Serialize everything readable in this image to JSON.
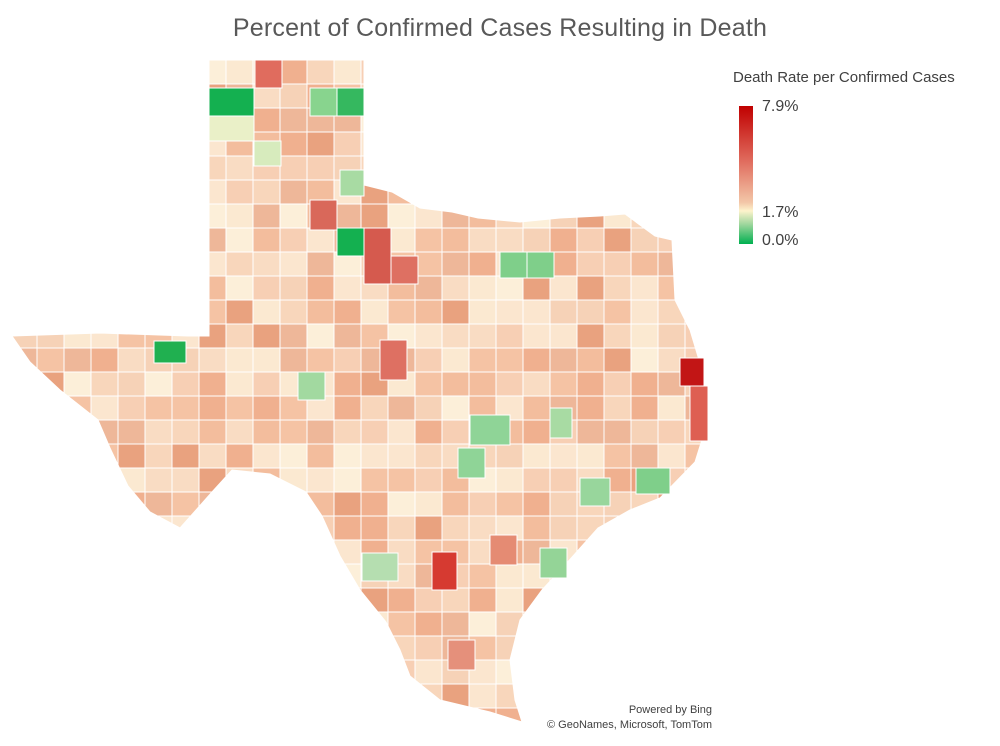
{
  "title": "Percent of Confirmed Cases Resulting in Death",
  "legend": {
    "title": "Death Rate per Confirmed Cases",
    "max_label": "7.9%",
    "mid_label": "1.7%",
    "min_label": "0.0%",
    "colors": {
      "max": "#c00000",
      "mid": "#fdf3cc",
      "min": "#00b050"
    }
  },
  "credits": {
    "powered_by": "Powered by Bing",
    "copyright": "© GeoNames, Microsoft, TomTom"
  }
}
